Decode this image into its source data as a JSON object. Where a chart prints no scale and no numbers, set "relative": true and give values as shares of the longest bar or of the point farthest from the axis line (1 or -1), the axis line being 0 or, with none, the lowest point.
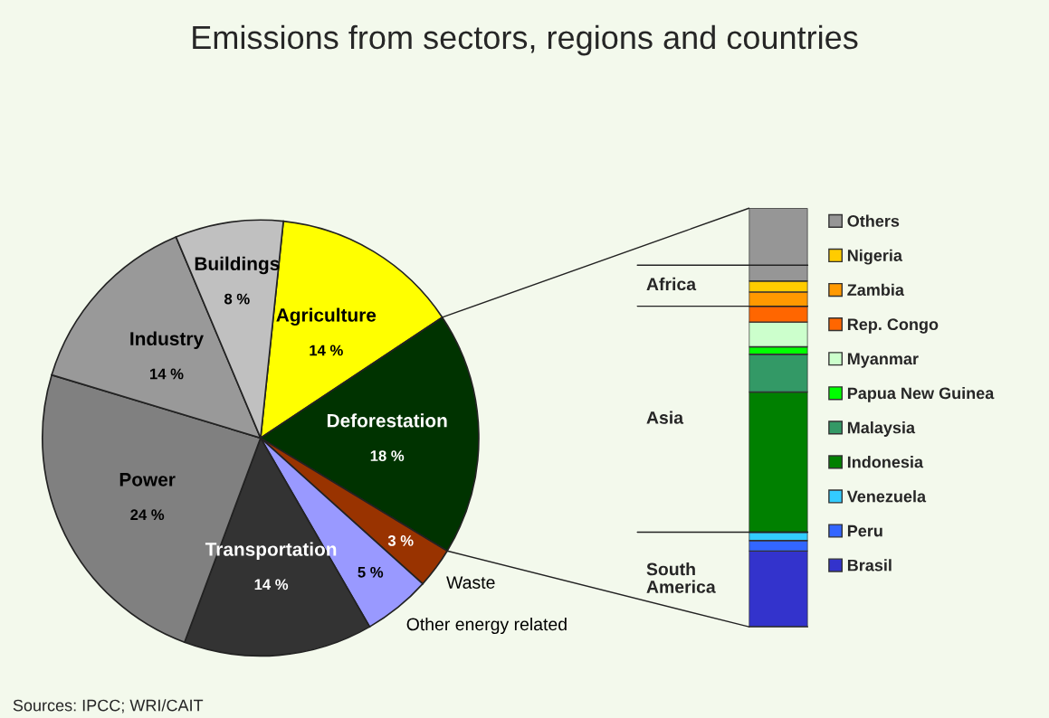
{
  "chart_data": [
    {
      "type": "pie",
      "title": "Emissions from sectors, regions and countries",
      "categories": [
        "Agriculture",
        "Deforestation",
        "Waste",
        "Other energy related",
        "Transportation",
        "Power",
        "Industry",
        "Buildings"
      ],
      "values": [
        14,
        18,
        3,
        5,
        14,
        24,
        14,
        8
      ],
      "value_labels": [
        "14 %",
        "18 %",
        "3 %",
        "5 %",
        "14 %",
        "24 %",
        "14 %",
        "8 %"
      ],
      "colors": [
        "#ffff00",
        "#003300",
        "#993300",
        "#9999ff",
        "#333333",
        "#808080",
        "#999999",
        "#c0c0c0"
      ],
      "annotations": [
        "Sources: IPCC; WRI/CAIT"
      ]
    },
    {
      "type": "bar",
      "stacked": true,
      "relative": true,
      "categories": [
        null
      ],
      "legend": "right",
      "series": [
        {
          "name": "Brasil",
          "color": "#3333cc",
          "values": [
            0.181
          ]
        },
        {
          "name": "Peru",
          "color": "#3366ff",
          "values": [
            0.025
          ]
        },
        {
          "name": "Venezuela",
          "color": "#33ccff",
          "values": [
            0.02
          ]
        },
        {
          "name": "Indonesia",
          "color": "#008000",
          "values": [
            0.335
          ]
        },
        {
          "name": "Malaysia",
          "color": "#339966",
          "values": [
            0.09
          ]
        },
        {
          "name": "Papua New Guinea",
          "color": "#00ff00",
          "values": [
            0.018
          ]
        },
        {
          "name": "Myanmar",
          "color": "#ccffcc",
          "values": [
            0.059
          ]
        },
        {
          "name": "Rep. Congo",
          "color": "#ff6600",
          "values": [
            0.038
          ]
        },
        {
          "name": "Zambia",
          "color": "#ff9900",
          "values": [
            0.034
          ]
        },
        {
          "name": "Nigeria",
          "color": "#ffcc00",
          "values": [
            0.026
          ]
        },
        {
          "name": "Others",
          "color": "#969696",
          "values": [
            0.174
          ]
        }
      ],
      "ref_lines": [
        {
          "axis": "y",
          "value": 0.226
        },
        {
          "axis": "y",
          "value": 0.766
        },
        {
          "axis": "y",
          "value": 0.864
        }
      ],
      "annotations": [
        "South America",
        "Asia",
        "Africa"
      ]
    }
  ]
}
